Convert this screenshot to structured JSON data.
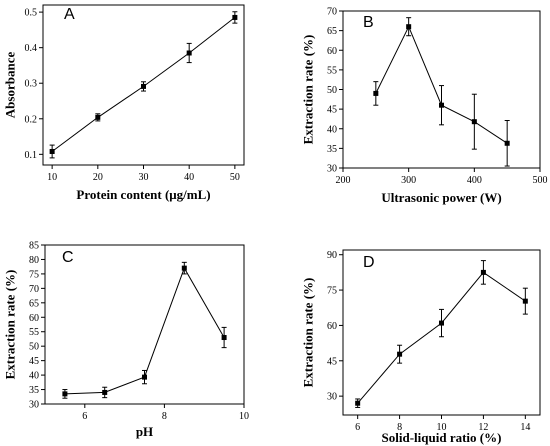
{
  "chart_data": [
    {
      "panel": "A",
      "type": "line",
      "xlabel": "Protein content (μg/mL)",
      "ylabel": "Absorbance",
      "xlim": [
        8,
        52
      ],
      "ylim": [
        0.07,
        0.52
      ],
      "xticks": [
        10,
        20,
        30,
        40,
        50
      ],
      "yticks": [
        0.1,
        0.2,
        0.3,
        0.4,
        0.5
      ],
      "series": [
        {
          "x": [
            10,
            20,
            30,
            40,
            50
          ],
          "y": [
            0.108,
            0.204,
            0.291,
            0.385,
            0.485
          ],
          "err": [
            0.018,
            0.01,
            0.013,
            0.027,
            0.016
          ]
        }
      ]
    },
    {
      "panel": "B",
      "type": "line",
      "xlabel": "Ultrasonic power (W)",
      "ylabel": "Extraction rate (%)",
      "xlim": [
        200,
        500
      ],
      "ylim": [
        30,
        70
      ],
      "xticks": [
        200,
        300,
        400,
        500
      ],
      "yticks": [
        30,
        35,
        40,
        45,
        50,
        55,
        60,
        65,
        70
      ],
      "series": [
        {
          "x": [
            250,
            300,
            350,
            400,
            450
          ],
          "y": [
            49,
            66,
            46,
            41.8,
            36.3
          ],
          "err": [
            3,
            2.3,
            5,
            7,
            5.8
          ]
        }
      ]
    },
    {
      "panel": "C",
      "type": "line",
      "xlabel": "pH",
      "ylabel": "Extraction rate (%)",
      "xlim": [
        5,
        10
      ],
      "ylim": [
        30,
        85
      ],
      "xticks": [
        6,
        8,
        10
      ],
      "yticks": [
        30,
        35,
        40,
        45,
        50,
        55,
        60,
        65,
        70,
        75,
        80,
        85
      ],
      "series": [
        {
          "x": [
            5.5,
            6.5,
            7.5,
            8.5,
            9.5
          ],
          "y": [
            33.5,
            34,
            39.3,
            77,
            53
          ],
          "err": [
            1.5,
            1.8,
            2.3,
            2,
            3.5
          ]
        }
      ]
    },
    {
      "panel": "D",
      "type": "line",
      "xlabel": "Solid-liquid ratio (%)",
      "ylabel": "Extraction rate (%)",
      "xlim": [
        5.3,
        14.7
      ],
      "ylim": [
        22,
        92
      ],
      "xticks": [
        6,
        8,
        10,
        12,
        14
      ],
      "yticks": [
        30,
        45,
        60,
        75,
        90
      ],
      "series": [
        {
          "x": [
            6,
            8,
            10,
            12,
            14
          ],
          "y": [
            27,
            47.8,
            61,
            82.5,
            70.3
          ],
          "err": [
            1.8,
            3.8,
            5.8,
            5,
            5.5
          ]
        }
      ]
    }
  ]
}
